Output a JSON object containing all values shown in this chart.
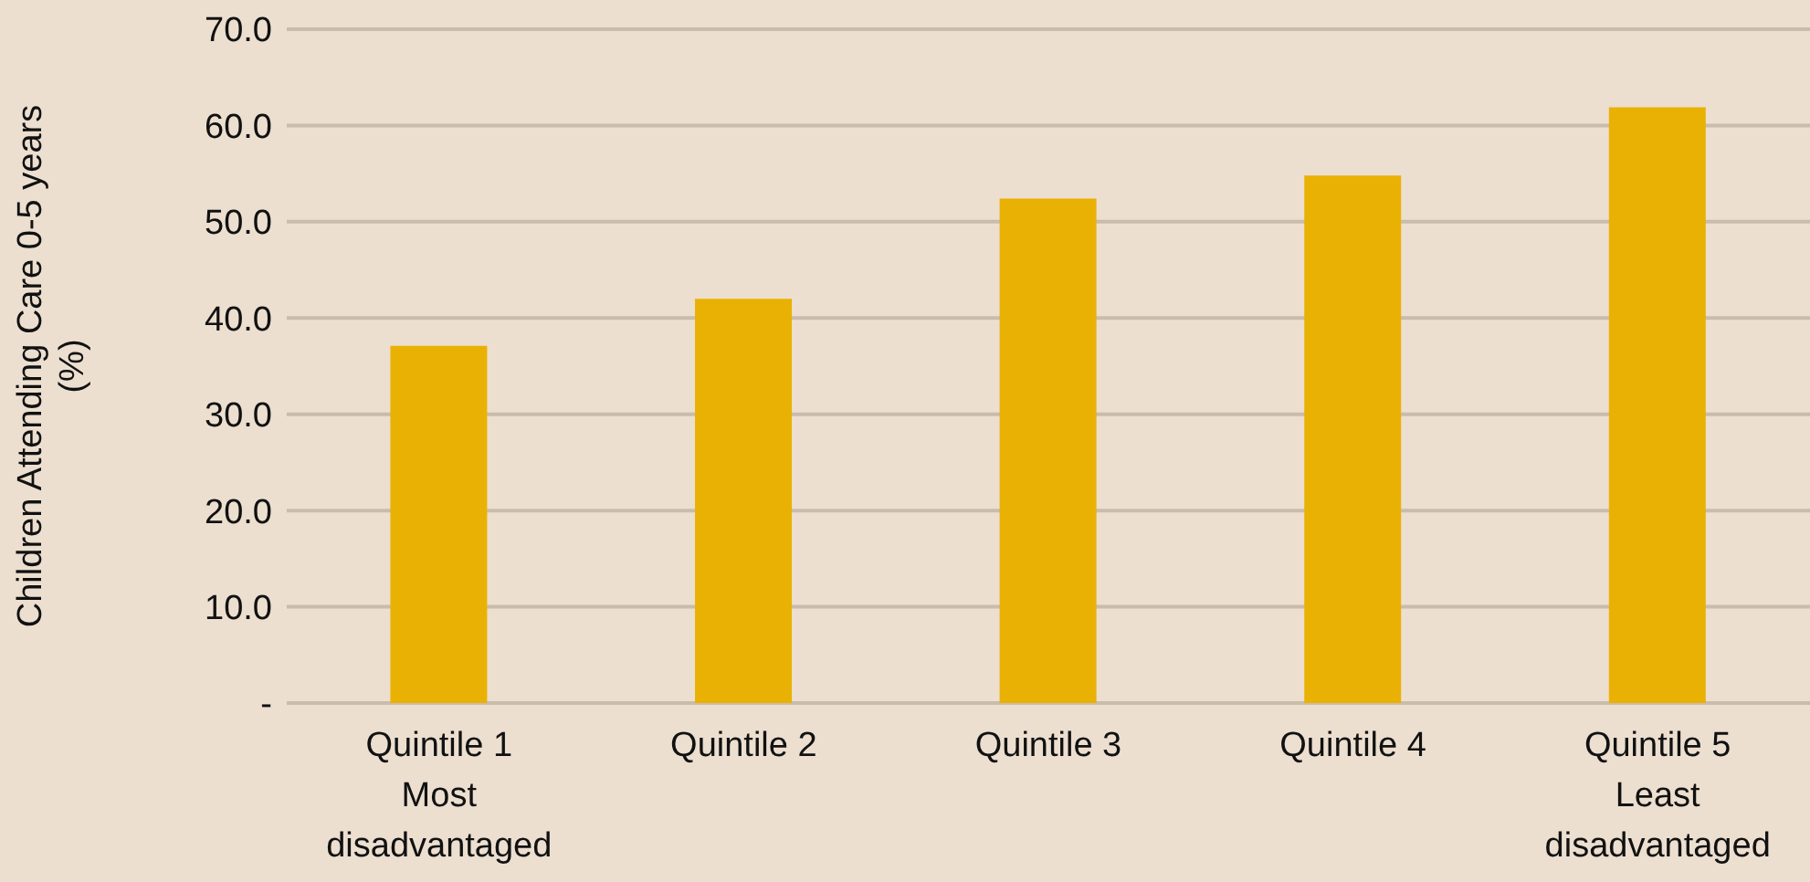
{
  "chart_data": {
    "type": "bar",
    "ylabel": "Children Attending Care 0-5 years (%)",
    "categories": [
      "Quintile 1\nMost\ndisadvantaged",
      "Quintile 2",
      "Quintile 3",
      "Quintile 4",
      "Quintile 5\nLeast\ndisadvantaged"
    ],
    "values": [
      37.1,
      42.0,
      52.4,
      54.8,
      61.9
    ],
    "color": "#eab105",
    "ylim": [
      0,
      70
    ],
    "yticks": [
      {
        "value": 0,
        "label": "-"
      },
      {
        "value": 10,
        "label": "10.0"
      },
      {
        "value": 20,
        "label": "20.0"
      },
      {
        "value": 30,
        "label": "30.0"
      },
      {
        "value": 40,
        "label": "40.0"
      },
      {
        "value": 50,
        "label": "50.0"
      },
      {
        "value": 60,
        "label": "60.0"
      },
      {
        "value": 70,
        "label": "70.0"
      }
    ],
    "grid": "y"
  }
}
